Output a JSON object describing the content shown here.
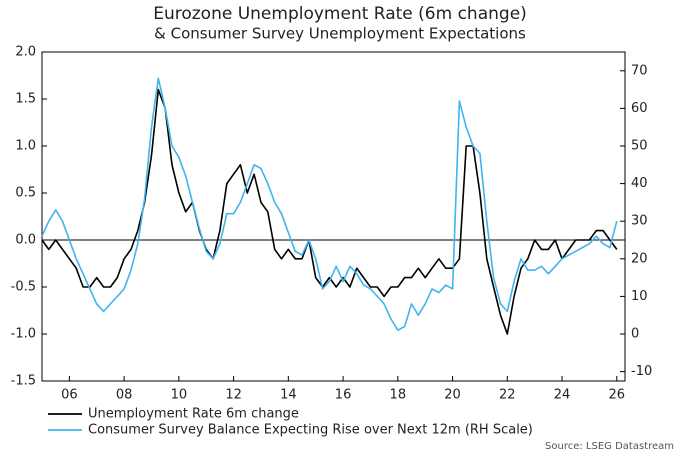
{
  "chart_data": {
    "type": "line",
    "title": "Eurozone Unemployment Rate (6m change)",
    "subtitle": "& Consumer Survey Unemployment Expectations",
    "source": "Source: LSEG Datastream",
    "x": [
      2005,
      2005.25,
      2005.5,
      2005.75,
      2006,
      2006.25,
      2006.5,
      2006.75,
      2007,
      2007.25,
      2007.5,
      2007.75,
      2008,
      2008.25,
      2008.5,
      2008.75,
      2009,
      2009.25,
      2009.5,
      2009.75,
      2010,
      2010.25,
      2010.5,
      2010.75,
      2011,
      2011.25,
      2011.5,
      2011.75,
      2012,
      2012.25,
      2012.5,
      2012.75,
      2013,
      2013.25,
      2013.5,
      2013.75,
      2014,
      2014.25,
      2014.5,
      2014.75,
      2015,
      2015.25,
      2015.5,
      2015.75,
      2016,
      2016.25,
      2016.5,
      2016.75,
      2017,
      2017.25,
      2017.5,
      2017.75,
      2018,
      2018.25,
      2018.5,
      2018.75,
      2019,
      2019.25,
      2019.5,
      2019.75,
      2020,
      2020.25,
      2020.5,
      2020.75,
      2021,
      2021.25,
      2021.5,
      2021.75,
      2022,
      2022.25,
      2022.5,
      2022.75,
      2023,
      2023.25,
      2023.5,
      2023.75,
      2024,
      2024.25,
      2024.5,
      2024.75,
      2025,
      2025.25,
      2025.5,
      2025.75,
      2026
    ],
    "series": [
      {
        "name": "Unemployment Rate 6m change",
        "color": "#000000",
        "axis": "y",
        "values": [
          0,
          -0.1,
          0,
          -0.1,
          -0.2,
          -0.3,
          -0.5,
          -0.5,
          -0.4,
          -0.5,
          -0.5,
          -0.4,
          -0.2,
          -0.1,
          0.1,
          0.4,
          0.9,
          1.6,
          1.4,
          0.8,
          0.5,
          0.3,
          0.4,
          0.1,
          -0.1,
          -0.2,
          0.1,
          0.6,
          0.7,
          0.8,
          0.5,
          0.7,
          0.4,
          0.3,
          -0.1,
          -0.2,
          -0.1,
          -0.2,
          -0.2,
          0,
          -0.4,
          -0.5,
          -0.4,
          -0.5,
          -0.4,
          -0.5,
          -0.3,
          -0.4,
          -0.5,
          -0.5,
          -0.6,
          -0.5,
          -0.5,
          -0.4,
          -0.4,
          -0.3,
          -0.4,
          -0.3,
          -0.2,
          -0.3,
          -0.3,
          -0.2,
          1,
          1,
          0.5,
          -0.2,
          -0.5,
          -0.8,
          -1,
          -0.6,
          -0.3,
          -0.2,
          0,
          -0.1,
          -0.1,
          0,
          -0.2,
          -0.1,
          0,
          0,
          0,
          0.1,
          0.1,
          0,
          -0.1
        ]
      },
      {
        "name": "Consumer Survey Balance Expecting Rise over Next 12m (RH Scale)",
        "color": "#3fb4ee",
        "axis": "y2",
        "values": [
          26,
          30,
          33,
          30,
          25,
          20,
          16,
          12,
          8,
          6,
          8,
          10,
          12,
          17,
          24,
          36,
          55,
          68,
          60,
          50,
          47,
          42,
          35,
          28,
          22,
          20,
          24,
          32,
          32,
          35,
          40,
          45,
          44,
          40,
          35,
          32,
          27,
          22,
          21,
          25,
          20,
          12,
          14,
          18,
          14,
          18,
          16,
          13,
          12,
          10,
          8,
          4,
          1,
          2,
          8,
          5,
          8,
          12,
          11,
          13,
          12,
          62,
          55,
          50,
          48,
          30,
          15,
          8,
          6,
          14,
          20,
          17,
          17,
          18,
          16,
          18,
          20,
          21,
          22,
          23,
          24,
          26,
          24,
          23,
          30
        ]
      }
    ],
    "xlim": [
      2005,
      2026.3
    ],
    "xticks": [
      {
        "value": 2006,
        "label": "06"
      },
      {
        "value": 2008,
        "label": "08"
      },
      {
        "value": 2010,
        "label": "10"
      },
      {
        "value": 2012,
        "label": "12"
      },
      {
        "value": 2014,
        "label": "14"
      },
      {
        "value": 2016,
        "label": "16"
      },
      {
        "value": 2018,
        "label": "18"
      },
      {
        "value": 2020,
        "label": "20"
      },
      {
        "value": 2022,
        "label": "22"
      },
      {
        "value": 2024,
        "label": "24"
      },
      {
        "value": 2026,
        "label": "26"
      }
    ],
    "ylim": [
      -1.5,
      2.0
    ],
    "yticks": [
      {
        "value": -1.5,
        "label": "-1.5"
      },
      {
        "value": -1,
        "label": "-1.0"
      },
      {
        "value": -0.5,
        "label": "-0.5"
      },
      {
        "value": 0,
        "label": "0.0"
      },
      {
        "value": 0.5,
        "label": "0.5"
      },
      {
        "value": 1,
        "label": "1.0"
      },
      {
        "value": 1.5,
        "label": "1.5"
      },
      {
        "value": 2,
        "label": "2.0"
      }
    ],
    "y2lim": [
      -12.5,
      75
    ],
    "y2ticks": [
      -10,
      0,
      10,
      20,
      30,
      40,
      50,
      60,
      70
    ],
    "zero_line": true
  }
}
